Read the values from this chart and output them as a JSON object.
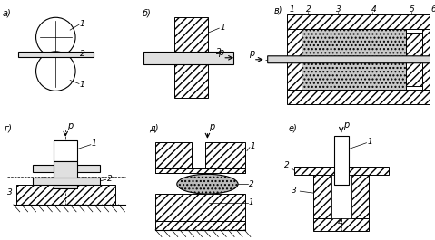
{
  "bg_color": "#ffffff",
  "labels": {
    "a": "а)",
    "b": "б)",
    "v": "в)",
    "g": "г)",
    "d": "д)",
    "e": "е)"
  }
}
